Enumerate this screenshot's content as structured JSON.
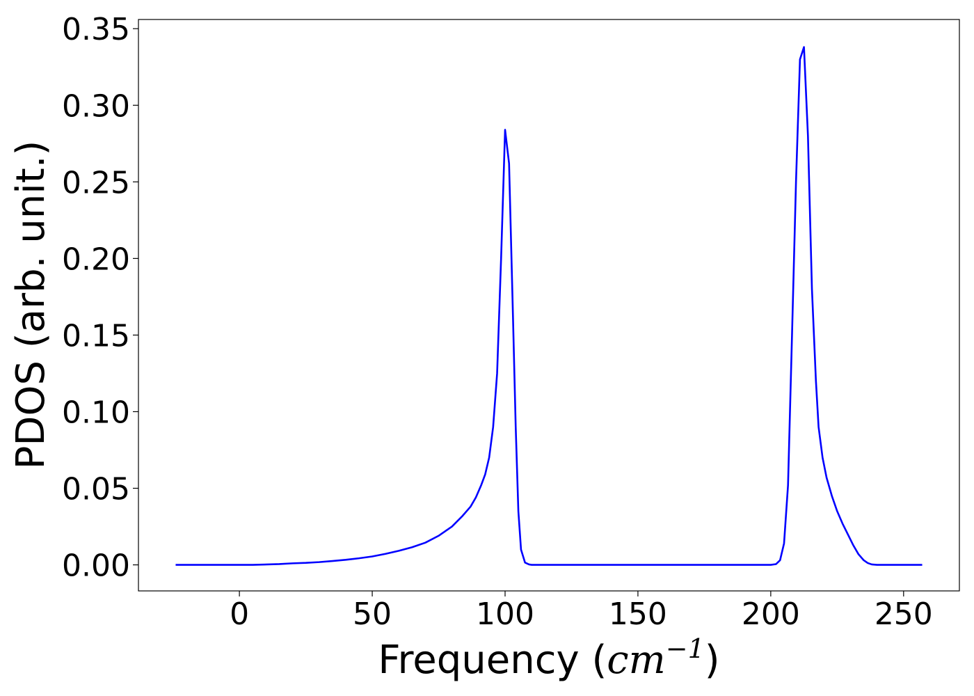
{
  "chart_data": {
    "type": "line",
    "title": "",
    "xlabel": "Frequency (cm⁻¹)",
    "xlabel_parts": {
      "prefix": "Frequency (",
      "math": "cm",
      "sup": "−1",
      "suffix": ")"
    },
    "ylabel": "PDOS (arb. unit.)",
    "xlim": [
      -38,
      271
    ],
    "ylim": [
      -0.017,
      0.356
    ],
    "xticks": [
      0,
      50,
      100,
      150,
      200,
      250
    ],
    "xtick_labels": [
      "0",
      "50",
      "100",
      "150",
      "200",
      "250"
    ],
    "yticks": [
      0.0,
      0.05,
      0.1,
      0.15,
      0.2,
      0.25,
      0.3,
      0.35
    ],
    "ytick_labels": [
      "0.00",
      "0.05",
      "0.10",
      "0.15",
      "0.20",
      "0.25",
      "0.30",
      "0.35"
    ],
    "grid": false,
    "legend": "none",
    "series": [
      {
        "color": "#0000ff",
        "x": [
          -24,
          0,
          5,
          15,
          20,
          25,
          30,
          35,
          40,
          45,
          50,
          55,
          60,
          65,
          70,
          75,
          80,
          84,
          87,
          89,
          91,
          92.5,
          94,
          95.5,
          97,
          98.5,
          100,
          101.5,
          103,
          104,
          105,
          106,
          107.5,
          109,
          110,
          120,
          150,
          180,
          200,
          202,
          203.5,
          205,
          206.5,
          208,
          209.5,
          211,
          212.5,
          214,
          215.5,
          217,
          218,
          219.5,
          221,
          223,
          225,
          227,
          229,
          231,
          233,
          235,
          236.5,
          238,
          240,
          257
        ],
        "y": [
          0.0,
          0.0,
          0.0,
          0.0005,
          0.001,
          0.0013,
          0.0018,
          0.0025,
          0.0033,
          0.0043,
          0.0055,
          0.0072,
          0.0092,
          0.0115,
          0.0145,
          0.019,
          0.025,
          0.032,
          0.038,
          0.044,
          0.052,
          0.059,
          0.07,
          0.09,
          0.125,
          0.2,
          0.284,
          0.262,
          0.16,
          0.09,
          0.035,
          0.01,
          0.0015,
          0.0003,
          0.0,
          0.0,
          0.0,
          0.0,
          0.0,
          0.0005,
          0.003,
          0.014,
          0.052,
          0.15,
          0.25,
          0.33,
          0.338,
          0.28,
          0.18,
          0.12,
          0.09,
          0.07,
          0.057,
          0.045,
          0.035,
          0.027,
          0.02,
          0.013,
          0.007,
          0.003,
          0.0012,
          0.0003,
          0.0,
          0.0
        ]
      }
    ]
  }
}
